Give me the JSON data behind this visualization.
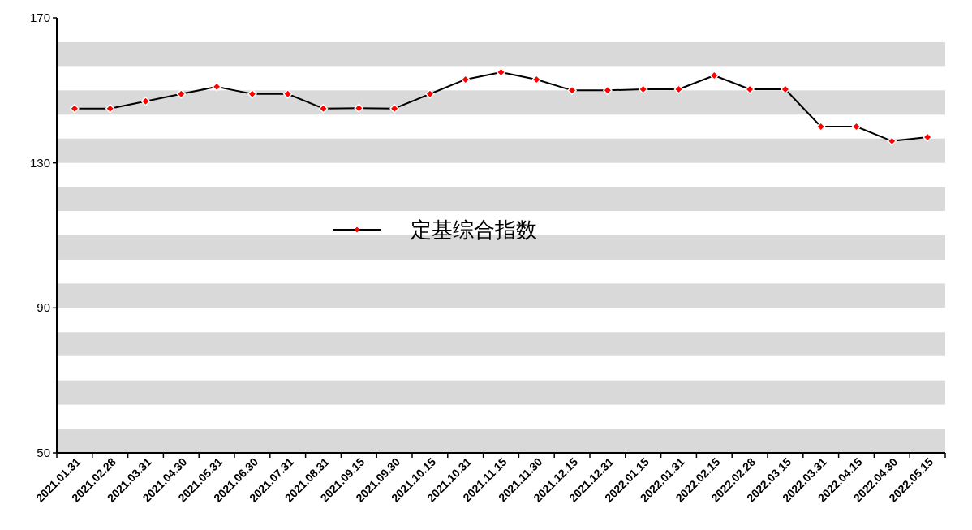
{
  "chart_data": {
    "type": "line",
    "categories": [
      "2021.01.31",
      "2021.02.28",
      "2021.03.31",
      "2021.04.30",
      "2021.05.31",
      "2021.06.30",
      "2021.07.31",
      "2021.08.31",
      "2021.09.15",
      "2021.09.30",
      "2021.10.15",
      "2021.10.31",
      "2021.11.15",
      "2021.11.30",
      "2021.12.15",
      "2021.12.31",
      "2022.01.15",
      "2022.01.31",
      "2022.02.15",
      "2022.02.28",
      "2022.03.15",
      "2022.03.31",
      "2022.04.15",
      "2022.04.30",
      "2022.05.15"
    ],
    "series": [
      {
        "name": "定基综合指数",
        "color": "#000000",
        "colors": [
          "#ff0000",
          "#ff0000",
          "#ff0000",
          "#ff0000",
          "#ff0000",
          "#ff0000",
          "#ff0000",
          "#ff0000",
          "#ff0000",
          "#ff0000",
          "#ff0000",
          "#ff0000",
          "#ff0000",
          "#ff0000",
          "#ff0000",
          "#ff0000",
          "#ff0000",
          "#ff0000",
          "#ff0000",
          "#ff0000",
          "#ff0000",
          "#ff0000",
          "#ff0000",
          "#ff0000",
          "#ff0000"
        ],
        "values": [
          145,
          145,
          147,
          149,
          151,
          149,
          149,
          145,
          145.1,
          145,
          149,
          153,
          155,
          153,
          150,
          150,
          150.3,
          150.3,
          154.1,
          150.3,
          150.3,
          140,
          140,
          136,
          137.1
        ]
      }
    ],
    "ylim": [
      50,
      170
    ],
    "yticks": [
      50,
      90,
      130,
      170
    ],
    "bands": [
      {
        "axis": "y",
        "from": 50,
        "to": 56.7,
        "color": "#d9d9d9"
      },
      {
        "axis": "y",
        "from": 63.3,
        "to": 70,
        "color": "#d9d9d9"
      },
      {
        "axis": "y",
        "from": 76.7,
        "to": 83.3,
        "color": "#d9d9d9"
      },
      {
        "axis": "y",
        "from": 90,
        "to": 96.7,
        "color": "#d9d9d9"
      },
      {
        "axis": "y",
        "from": 103.3,
        "to": 110,
        "color": "#d9d9d9"
      },
      {
        "axis": "y",
        "from": 116.7,
        "to": 123.3,
        "color": "#d9d9d9"
      },
      {
        "axis": "y",
        "from": 130,
        "to": 136.7,
        "color": "#d9d9d9"
      },
      {
        "axis": "y",
        "from": 143.3,
        "to": 150,
        "color": "#d9d9d9"
      },
      {
        "axis": "y",
        "from": 156.7,
        "to": 163.3,
        "color": "#d9d9d9"
      }
    ],
    "marker": "diamond",
    "legend": "center",
    "grid": false
  }
}
